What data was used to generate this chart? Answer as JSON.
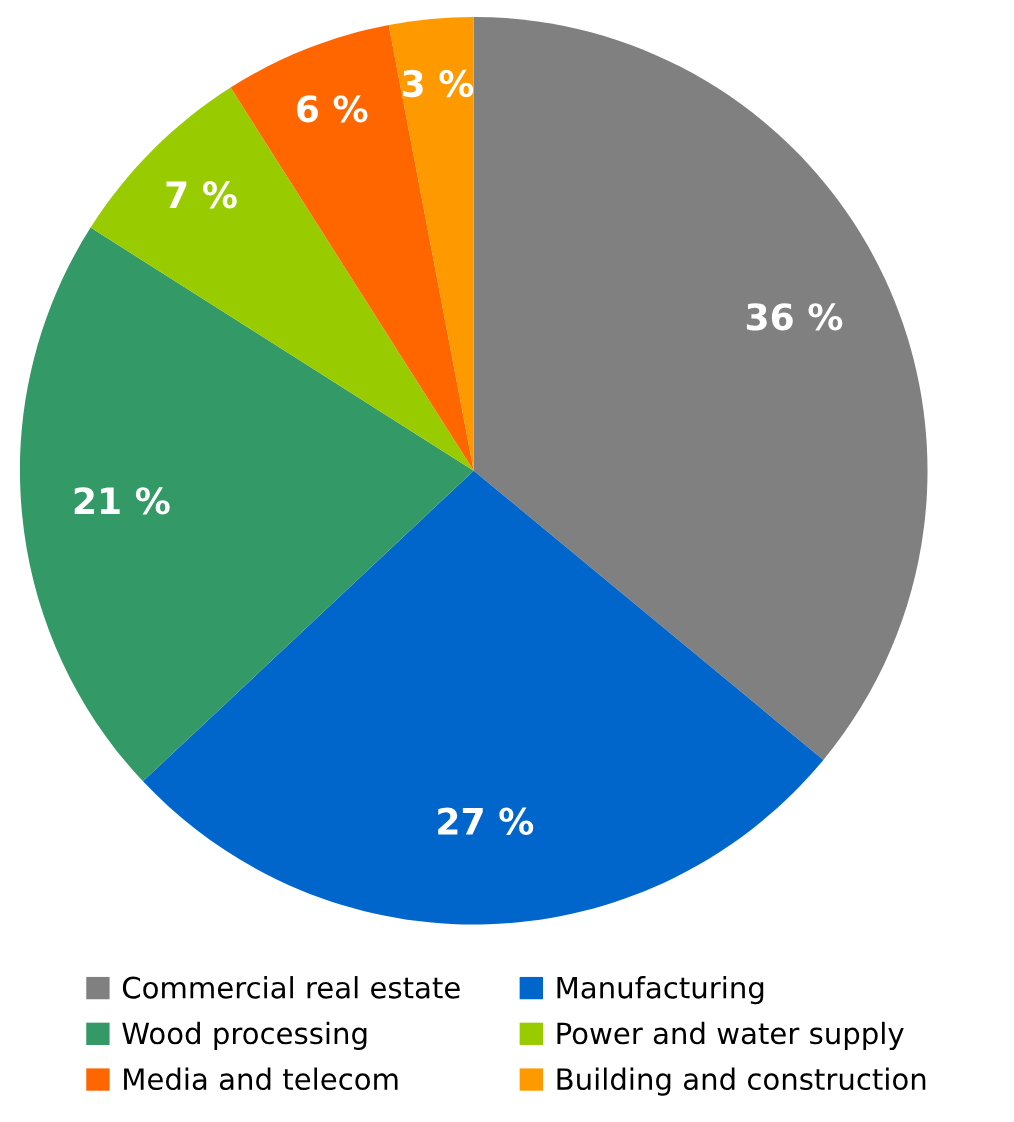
{
  "chart_data": {
    "type": "pie",
    "categories": [
      "Commercial real estate",
      "Manufacturing",
      "Wood processing",
      "Power and water supply",
      "Media and telecom",
      "Building and construction"
    ],
    "values": [
      36,
      27,
      21,
      7,
      6,
      3
    ],
    "colors": [
      "#808080",
      "#0066cc",
      "#339966",
      "#99cc00",
      "#ff6600",
      "#ff9900"
    ],
    "value_labels": [
      "36 %",
      "27 %",
      "21 %",
      "7 %",
      "6 %",
      "3 %"
    ],
    "legend": "bottom"
  }
}
